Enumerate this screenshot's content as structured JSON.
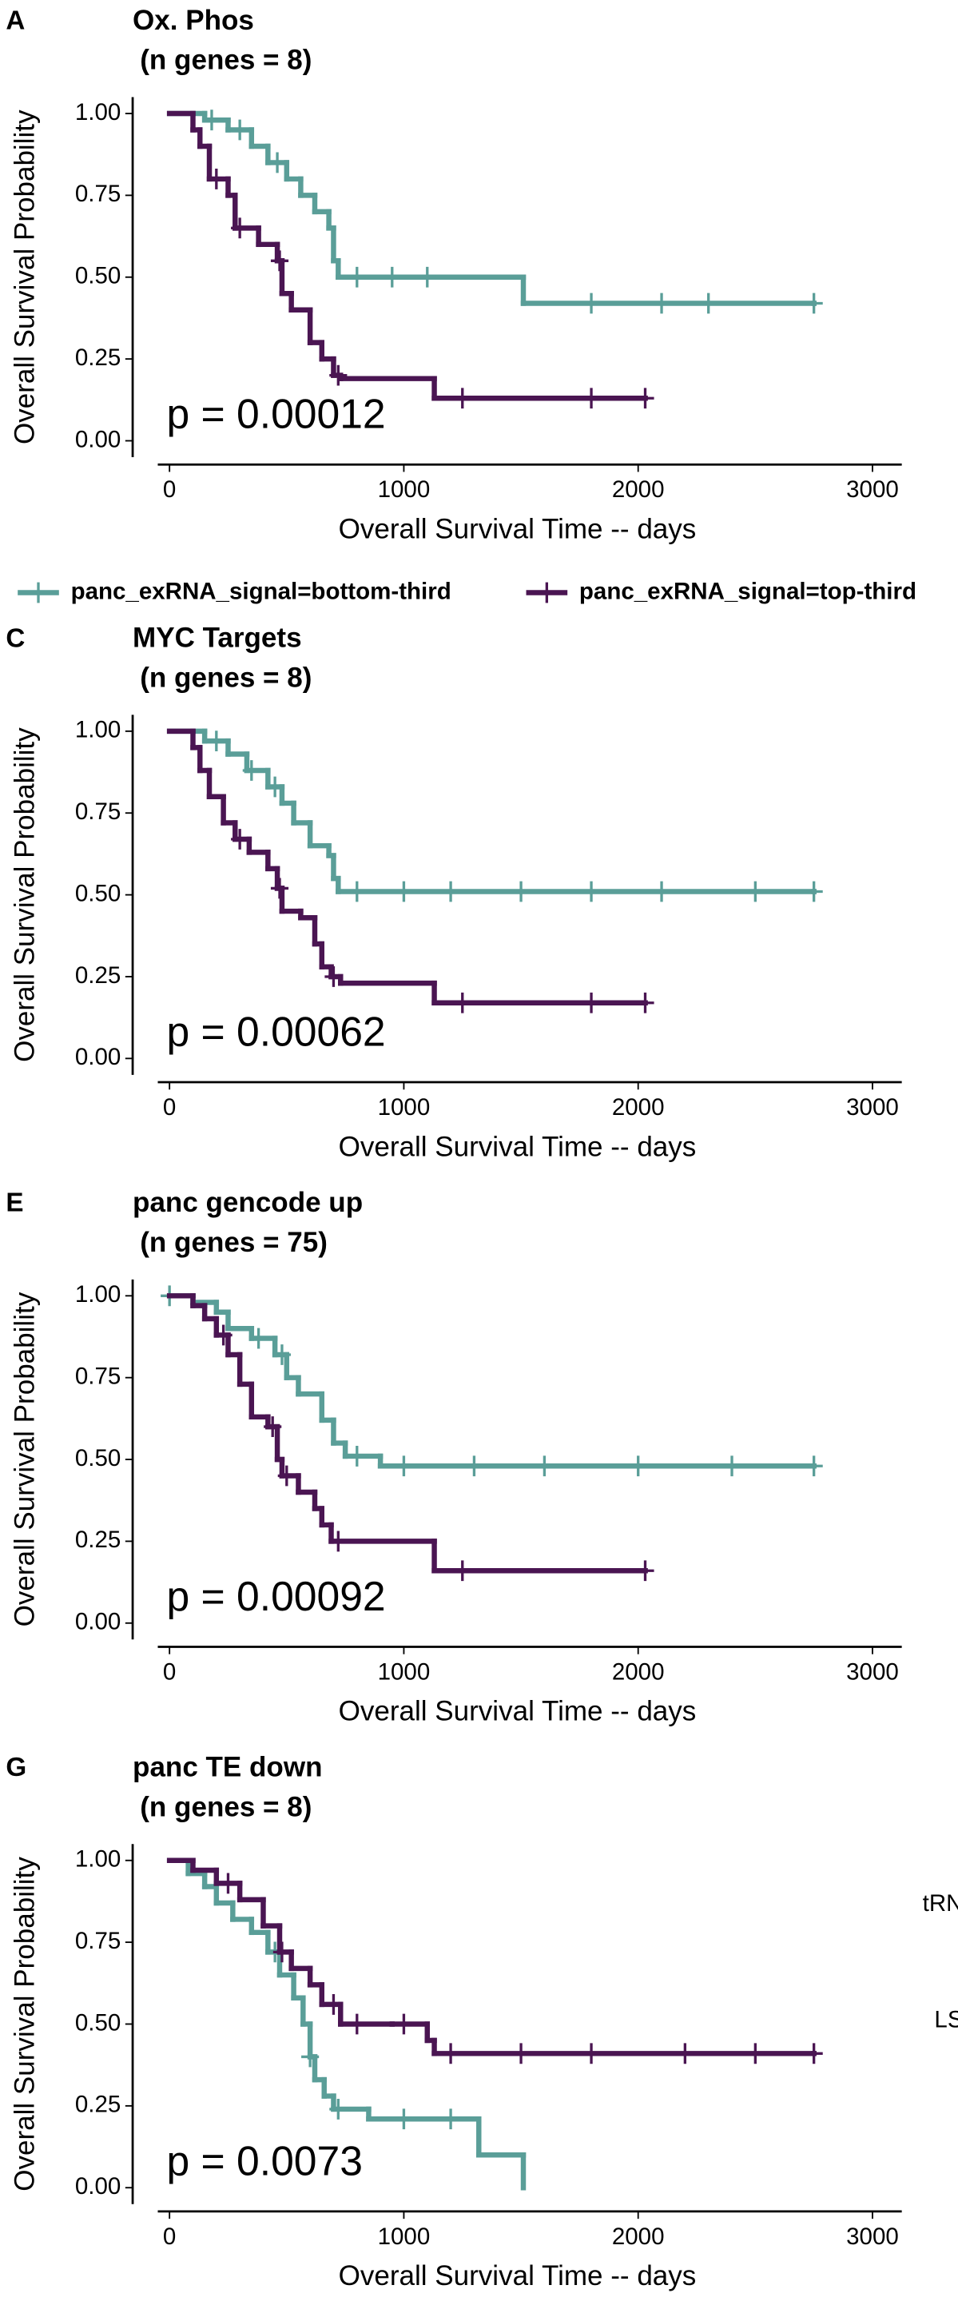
{
  "chart_data": [
    {
      "type": "step",
      "panel_label": "A",
      "title": "Ox. Phos",
      "subtitle": "(n genes = 8)",
      "annotation": "p = 0.00012",
      "xlabel": "Overall Survival Time -- days",
      "ylabel": "Overall Survival Probability",
      "xlim": [
        -50,
        3125
      ],
      "ylim": [
        -0.05,
        1.05
      ],
      "xticks": [
        0,
        1000,
        2000,
        3000
      ],
      "yticks": [
        {
          "value": 0,
          "label": "0.00"
        },
        {
          "value": 0.25,
          "label": "0.25"
        },
        {
          "value": 0.5,
          "label": "0.50"
        },
        {
          "value": 0.75,
          "label": "0.75"
        },
        {
          "value": 1,
          "label": "1.00"
        }
      ],
      "series": [
        {
          "name": "panc_exRNA_signal=bottom-third",
          "color": "#5a9e98",
          "x": [
            0,
            150,
            250,
            350,
            420,
            500,
            560,
            620,
            680,
            700,
            720,
            1510,
            2750
          ],
          "values": [
            1.0,
            0.98,
            0.95,
            0.9,
            0.85,
            0.8,
            0.75,
            0.7,
            0.65,
            0.55,
            0.5,
            0.42,
            0.42
          ],
          "censor_x": [
            180,
            300,
            460,
            800,
            950,
            1100,
            1800,
            2100,
            2300,
            2750
          ],
          "censor_y": [
            0.98,
            0.95,
            0.85,
            0.5,
            0.5,
            0.5,
            0.42,
            0.42,
            0.42,
            0.42
          ]
        },
        {
          "name": "panc_exRNA_signal=top-third",
          "color": "#4a1552",
          "x": [
            0,
            100,
            130,
            170,
            250,
            280,
            380,
            460,
            480,
            520,
            600,
            650,
            700,
            730,
            1130,
            2030
          ],
          "values": [
            1.0,
            0.95,
            0.9,
            0.8,
            0.75,
            0.65,
            0.6,
            0.55,
            0.45,
            0.4,
            0.3,
            0.25,
            0.2,
            0.19,
            0.13,
            0.13
          ],
          "censor_x": [
            200,
            300,
            470,
            720,
            1250,
            1800,
            2030
          ],
          "censor_y": [
            0.8,
            0.65,
            0.55,
            0.2,
            0.13,
            0.13,
            0.13
          ]
        }
      ]
    },
    {
      "type": "step",
      "panel_label": "C",
      "title": "MYC Targets",
      "subtitle": "(n genes = 8)",
      "annotation": "p = 0.00062",
      "xlabel": "Overall Survival Time -- days",
      "ylabel": "Overall Survival Probability",
      "xlim": [
        -50,
        3125
      ],
      "ylim": [
        -0.05,
        1.05
      ],
      "xticks": [
        0,
        1000,
        2000,
        3000
      ],
      "yticks": [
        {
          "value": 0,
          "label": "0.00"
        },
        {
          "value": 0.25,
          "label": "0.25"
        },
        {
          "value": 0.5,
          "label": "0.50"
        },
        {
          "value": 0.75,
          "label": "0.75"
        },
        {
          "value": 1,
          "label": "1.00"
        }
      ],
      "series": [
        {
          "color": "#5a9e98",
          "x": [
            0,
            150,
            250,
            330,
            420,
            480,
            530,
            600,
            680,
            700,
            720,
            2750
          ],
          "values": [
            1.0,
            0.97,
            0.93,
            0.88,
            0.83,
            0.78,
            0.72,
            0.65,
            0.62,
            0.55,
            0.51,
            0.51
          ],
          "censor_x": [
            200,
            350,
            450,
            800,
            1000,
            1200,
            1500,
            1800,
            2100,
            2500,
            2750
          ],
          "censor_y": [
            0.97,
            0.88,
            0.83,
            0.51,
            0.51,
            0.51,
            0.51,
            0.51,
            0.51,
            0.51,
            0.51
          ]
        },
        {
          "color": "#4a1552",
          "x": [
            0,
            100,
            130,
            170,
            230,
            280,
            340,
            420,
            460,
            480,
            560,
            620,
            650,
            690,
            730,
            1130,
            2030
          ],
          "values": [
            1.0,
            0.95,
            0.88,
            0.8,
            0.72,
            0.67,
            0.63,
            0.58,
            0.52,
            0.45,
            0.43,
            0.35,
            0.28,
            0.25,
            0.23,
            0.17,
            0.17
          ],
          "censor_x": [
            300,
            470,
            700,
            1250,
            1800,
            2030
          ],
          "censor_y": [
            0.67,
            0.52,
            0.25,
            0.17,
            0.17,
            0.17
          ]
        }
      ]
    },
    {
      "type": "step",
      "panel_label": "E",
      "title": "panc gencode up",
      "subtitle": "(n genes = 75)",
      "annotation": "p = 0.00092",
      "xlabel": "Overall Survival Time -- days",
      "ylabel": "Overall Survival Probability",
      "xlim": [
        -50,
        3125
      ],
      "ylim": [
        -0.05,
        1.05
      ],
      "xticks": [
        0,
        1000,
        2000,
        3000
      ],
      "yticks": [
        {
          "value": 0,
          "label": "0.00"
        },
        {
          "value": 0.25,
          "label": "0.25"
        },
        {
          "value": 0.5,
          "label": "0.50"
        },
        {
          "value": 0.75,
          "label": "0.75"
        },
        {
          "value": 1,
          "label": "1.00"
        }
      ],
      "series": [
        {
          "color": "#5a9e98",
          "x": [
            0,
            100,
            200,
            250,
            350,
            450,
            500,
            550,
            650,
            700,
            750,
            900,
            2750
          ],
          "values": [
            1.0,
            0.98,
            0.95,
            0.9,
            0.87,
            0.82,
            0.75,
            0.7,
            0.62,
            0.55,
            0.51,
            0.48,
            0.48
          ],
          "censor_x": [
            0,
            380,
            480,
            800,
            1000,
            1300,
            1600,
            2000,
            2400,
            2750
          ],
          "censor_y": [
            1.0,
            0.87,
            0.82,
            0.51,
            0.48,
            0.48,
            0.48,
            0.48,
            0.48,
            0.48
          ]
        },
        {
          "color": "#4a1552",
          "x": [
            0,
            100,
            150,
            200,
            250,
            300,
            350,
            420,
            460,
            480,
            550,
            620,
            650,
            690,
            1130,
            2030
          ],
          "values": [
            1.0,
            0.97,
            0.93,
            0.88,
            0.82,
            0.73,
            0.63,
            0.6,
            0.5,
            0.45,
            0.4,
            0.35,
            0.3,
            0.25,
            0.16,
            0.16
          ],
          "censor_x": [
            230,
            440,
            500,
            720,
            1250,
            2030
          ],
          "censor_y": [
            0.88,
            0.6,
            0.45,
            0.25,
            0.16,
            0.16
          ]
        }
      ]
    },
    {
      "type": "step",
      "panel_label": "G",
      "title": "panc TE down",
      "subtitle": "(n genes = 8)",
      "annotation": "p = 0.0073",
      "xlabel": "Overall Survival Time -- days",
      "ylabel": "Overall Survival Probability",
      "xlim": [
        -50,
        3125
      ],
      "ylim": [
        -0.05,
        1.05
      ],
      "xticks": [
        0,
        1000,
        2000,
        3000
      ],
      "yticks": [
        {
          "value": 0,
          "label": "0.00"
        },
        {
          "value": 0.25,
          "label": "0.25"
        },
        {
          "value": 0.5,
          "label": "0.50"
        },
        {
          "value": 0.75,
          "label": "0.75"
        },
        {
          "value": 1,
          "label": "1.00"
        }
      ],
      "series": [
        {
          "color": "#5a9e98",
          "x": [
            0,
            80,
            150,
            200,
            270,
            350,
            420,
            470,
            530,
            570,
            600,
            620,
            660,
            700,
            850,
            1320,
            1510
          ],
          "values": [
            1.0,
            0.96,
            0.92,
            0.87,
            0.82,
            0.78,
            0.72,
            0.65,
            0.58,
            0.5,
            0.4,
            0.33,
            0.28,
            0.24,
            0.21,
            0.1,
            0.0
          ],
          "censor_x": [
            450,
            600,
            720,
            1000,
            1200
          ],
          "censor_y": [
            0.72,
            0.4,
            0.24,
            0.21,
            0.21
          ]
        },
        {
          "color": "#4a1552",
          "x": [
            0,
            100,
            200,
            300,
            400,
            470,
            520,
            600,
            650,
            730,
            950,
            1100,
            1130,
            2750
          ],
          "values": [
            1.0,
            0.97,
            0.93,
            0.88,
            0.8,
            0.72,
            0.67,
            0.62,
            0.56,
            0.5,
            0.5,
            0.45,
            0.41,
            0.41
          ],
          "censor_x": [
            250,
            480,
            700,
            800,
            1000,
            1200,
            1500,
            1800,
            2200,
            2500,
            2750
          ],
          "censor_y": [
            0.93,
            0.72,
            0.56,
            0.5,
            0.5,
            0.41,
            0.41,
            0.41,
            0.41,
            0.41,
            0.41
          ]
        }
      ]
    }
  ],
  "cropped_text": [
    "tRN",
    "LS"
  ]
}
